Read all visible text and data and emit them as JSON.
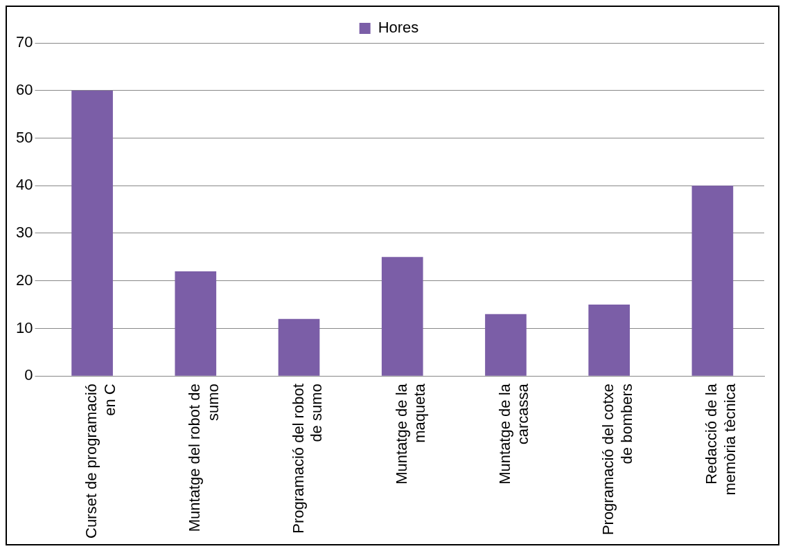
{
  "chart_data": {
    "type": "bar",
    "categories": [
      "Curset de programació en C",
      "Muntatge del robot de sumo",
      "Programació del robot de sumo",
      "Muntatge de la maqueta",
      "Muntatge de la carcassa",
      "Programació del cotxe de bombers",
      "Redacció de la memòria tècnica"
    ],
    "series": [
      {
        "name": "Hores",
        "color": "#7b5ea7",
        "values": [
          60,
          22,
          12,
          25,
          13,
          15,
          40
        ]
      }
    ],
    "ylim": [
      0,
      70
    ],
    "yticks": [
      0,
      10,
      20,
      30,
      40,
      50,
      60,
      70
    ],
    "grid": "y",
    "legend": "top"
  }
}
